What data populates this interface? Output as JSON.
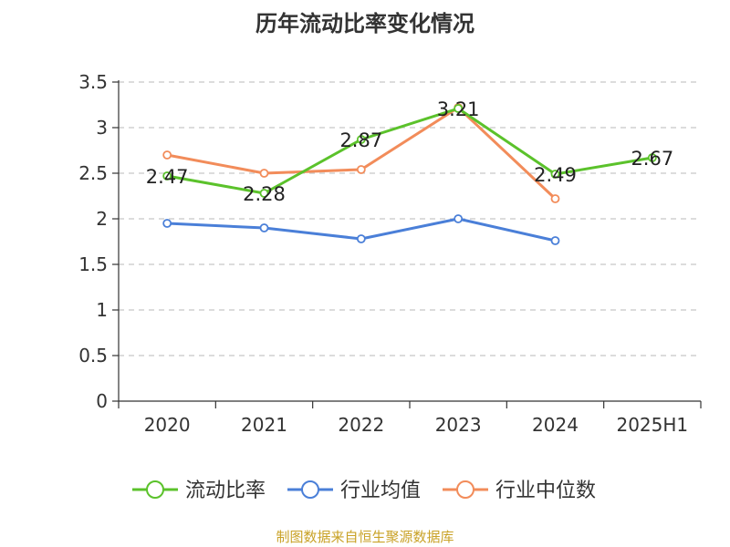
{
  "chart_data": {
    "type": "line",
    "title": "历年流动比率变化情况",
    "categories": [
      "2020",
      "2021",
      "2022",
      "2023",
      "2024",
      "2025H1"
    ],
    "ylim": [
      0,
      3.5
    ],
    "yticks": [
      "0",
      "0.5",
      "1",
      "1.5",
      "2",
      "2.5",
      "3",
      "3.5"
    ],
    "ytick_values": [
      0,
      0.5,
      1,
      1.5,
      2,
      2.5,
      3,
      3.5
    ],
    "grid": true,
    "legend_position": "bottom",
    "series": [
      {
        "name": "流动比率",
        "color": "#5bc22b",
        "values": [
          2.47,
          2.28,
          2.87,
          3.21,
          2.49,
          2.67
        ],
        "labels": [
          "2.47",
          "2.28",
          "2.87",
          "3.21",
          "2.49",
          "2.67"
        ]
      },
      {
        "name": "行业均值",
        "color": "#4a7fd8",
        "values": [
          1.95,
          1.9,
          1.78,
          2.0,
          1.76,
          null
        ]
      },
      {
        "name": "行业中位数",
        "color": "#f28c5a",
        "values": [
          2.7,
          2.5,
          2.54,
          3.22,
          2.22,
          null
        ]
      }
    ]
  },
  "source": "制图数据来自恒生聚源数据库"
}
